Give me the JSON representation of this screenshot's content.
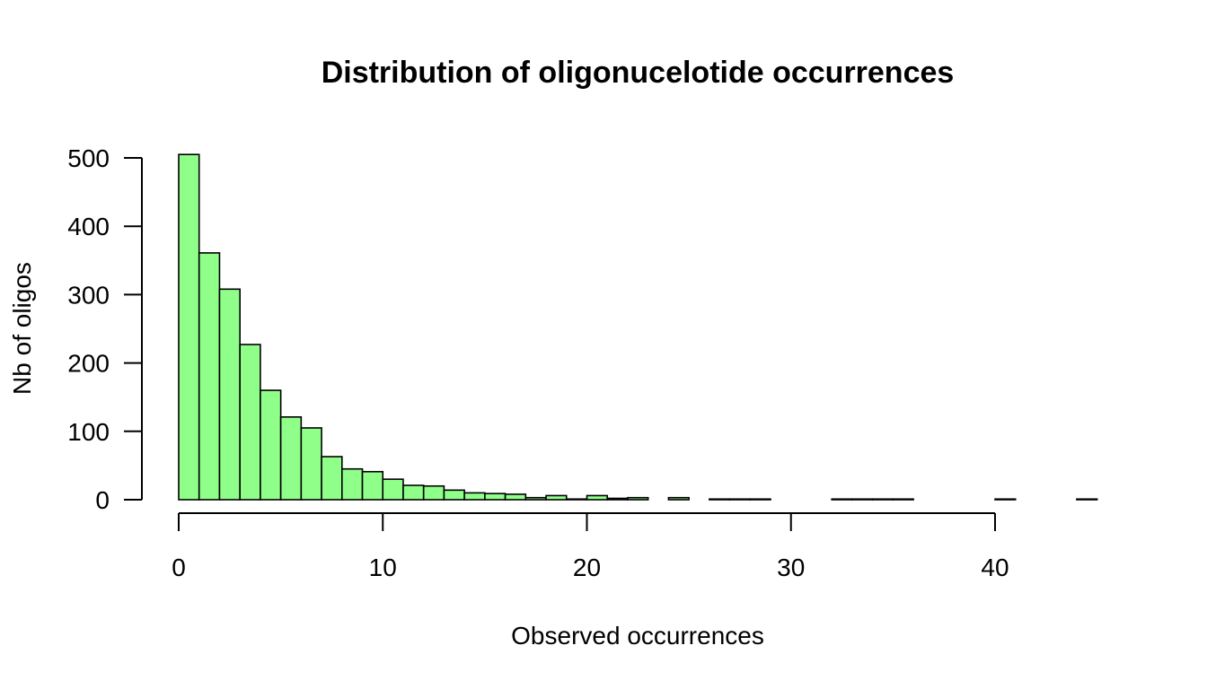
{
  "chart_data": {
    "type": "bar",
    "title": "Distribution of oligonucelotide occurrences",
    "xlabel": "Observed occurrences",
    "ylabel": "Nb of oligos",
    "bar_color": "#8fff8a",
    "xlim": [
      0,
      45
    ],
    "ylim": [
      0,
      500
    ],
    "x_ticks": [
      0,
      10,
      20,
      30,
      40
    ],
    "y_ticks": [
      0,
      100,
      200,
      300,
      400,
      500
    ],
    "bin_width": 1,
    "bin_starts": [
      0,
      1,
      2,
      3,
      4,
      5,
      6,
      7,
      8,
      9,
      10,
      11,
      12,
      13,
      14,
      15,
      16,
      17,
      18,
      19,
      20,
      21,
      22,
      23,
      24,
      25,
      26,
      27,
      28,
      29,
      30,
      31,
      32,
      33,
      34,
      35,
      36,
      37,
      38,
      39,
      40,
      41,
      42,
      43,
      44
    ],
    "values": [
      505,
      361,
      308,
      227,
      160,
      121,
      105,
      63,
      45,
      41,
      30,
      21,
      20,
      14,
      10,
      9,
      8,
      3,
      6,
      1,
      6,
      2,
      3,
      0,
      3,
      0,
      1,
      1,
      1,
      0,
      0,
      0,
      1,
      1,
      1,
      1,
      0,
      0,
      0,
      0,
      1,
      0,
      0,
      0,
      1
    ]
  }
}
